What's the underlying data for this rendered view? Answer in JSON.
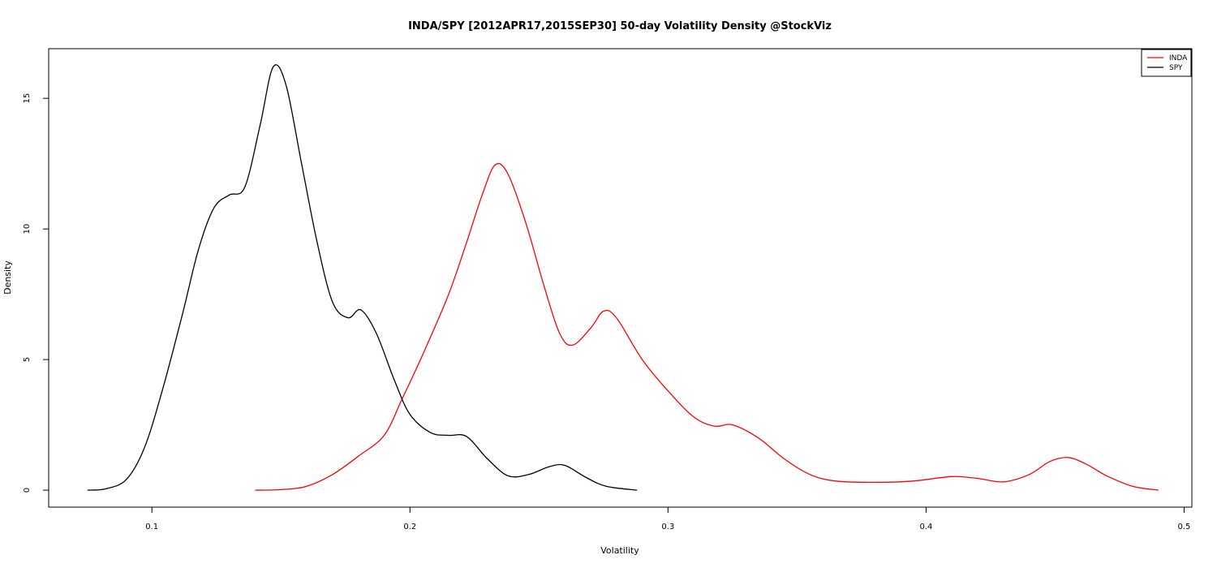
{
  "chart_data": {
    "type": "line",
    "title": "INDA/SPY [2012APR17,2015SEP30] 50-day Volatility Density @StockViz",
    "xlabel": "Volatility",
    "ylabel": "Density",
    "xlim": [
      0.06,
      0.503
    ],
    "ylim": [
      -0.65,
      16.9
    ],
    "xticks": [
      0.1,
      0.2,
      0.3,
      0.4,
      0.5
    ],
    "xtick_labels": [
      "0.1",
      "0.2",
      "0.3",
      "0.4",
      "0.5"
    ],
    "yticks": [
      0,
      5,
      10,
      15
    ],
    "ytick_labels": [
      "0",
      "5",
      "10",
      "15"
    ],
    "grid": false,
    "legend_position": "top-right",
    "legend": [
      {
        "label": "INDA",
        "color": "#ff0000"
      },
      {
        "label": "SPY",
        "color": "#000000"
      }
    ],
    "series": [
      {
        "name": "INDA",
        "color": "#ff0000",
        "points": [
          [
            0.14,
            0.0
          ],
          [
            0.15,
            0.02
          ],
          [
            0.16,
            0.15
          ],
          [
            0.17,
            0.6
          ],
          [
            0.18,
            1.3
          ],
          [
            0.19,
            2.1
          ],
          [
            0.197,
            3.5
          ],
          [
            0.205,
            5.2
          ],
          [
            0.215,
            7.5
          ],
          [
            0.222,
            9.5
          ],
          [
            0.228,
            11.3
          ],
          [
            0.233,
            12.45
          ],
          [
            0.238,
            12.1
          ],
          [
            0.245,
            10.2
          ],
          [
            0.252,
            7.8
          ],
          [
            0.258,
            6.0
          ],
          [
            0.263,
            5.55
          ],
          [
            0.27,
            6.2
          ],
          [
            0.275,
            6.85
          ],
          [
            0.28,
            6.6
          ],
          [
            0.29,
            5.0
          ],
          [
            0.3,
            3.8
          ],
          [
            0.31,
            2.8
          ],
          [
            0.318,
            2.45
          ],
          [
            0.325,
            2.5
          ],
          [
            0.335,
            2.0
          ],
          [
            0.345,
            1.2
          ],
          [
            0.355,
            0.6
          ],
          [
            0.365,
            0.35
          ],
          [
            0.38,
            0.3
          ],
          [
            0.395,
            0.35
          ],
          [
            0.41,
            0.52
          ],
          [
            0.42,
            0.45
          ],
          [
            0.43,
            0.32
          ],
          [
            0.44,
            0.6
          ],
          [
            0.448,
            1.1
          ],
          [
            0.455,
            1.25
          ],
          [
            0.462,
            1.0
          ],
          [
            0.47,
            0.55
          ],
          [
            0.48,
            0.15
          ],
          [
            0.49,
            0.0
          ]
        ]
      },
      {
        "name": "SPY",
        "color": "#000000",
        "points": [
          [
            0.075,
            0.0
          ],
          [
            0.082,
            0.05
          ],
          [
            0.09,
            0.4
          ],
          [
            0.097,
            1.6
          ],
          [
            0.104,
            3.8
          ],
          [
            0.112,
            6.8
          ],
          [
            0.118,
            9.2
          ],
          [
            0.124,
            10.8
          ],
          [
            0.13,
            11.3
          ],
          [
            0.136,
            11.6
          ],
          [
            0.142,
            14.0
          ],
          [
            0.147,
            16.2
          ],
          [
            0.152,
            15.5
          ],
          [
            0.158,
            12.5
          ],
          [
            0.164,
            9.5
          ],
          [
            0.17,
            7.2
          ],
          [
            0.176,
            6.6
          ],
          [
            0.181,
            6.9
          ],
          [
            0.187,
            6.0
          ],
          [
            0.194,
            4.2
          ],
          [
            0.2,
            2.9
          ],
          [
            0.208,
            2.2
          ],
          [
            0.215,
            2.1
          ],
          [
            0.222,
            2.05
          ],
          [
            0.23,
            1.2
          ],
          [
            0.238,
            0.55
          ],
          [
            0.246,
            0.6
          ],
          [
            0.254,
            0.9
          ],
          [
            0.26,
            0.95
          ],
          [
            0.268,
            0.5
          ],
          [
            0.276,
            0.15
          ],
          [
            0.288,
            0.0
          ]
        ]
      }
    ]
  }
}
